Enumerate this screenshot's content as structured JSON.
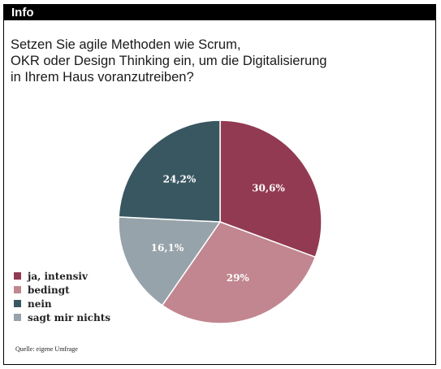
{
  "header": {
    "title": "Info"
  },
  "question": {
    "lines": [
      "Setzen Sie agile Methoden wie Scrum,",
      "OKR oder Design Thinking ein, um die Digitalisierung",
      "in Ihrem Haus voranzutreiben?"
    ]
  },
  "colors": {
    "ja_intensiv": "#923a52",
    "bedingt": "#c1868f",
    "nein": "#395761",
    "sagt_mir_nichts": "#97a3aa"
  },
  "chart_data": {
    "type": "pie",
    "categories": [
      "ja, intensiv",
      "bedingt",
      "nein",
      "sagt mir nichts"
    ],
    "values": [
      30.6,
      29,
      24.2,
      16.1
    ],
    "labels": [
      "30,6%",
      "29%",
      "24,2%",
      "16,1%"
    ],
    "slice_order_clockwise_from_top": [
      "ja, intensiv",
      "bedingt",
      "sagt mir nichts",
      "nein"
    ],
    "legend_position": "bottom-left"
  },
  "legend": {
    "items": [
      "ja, intensiv",
      "bedingt",
      "nein",
      "sagt mir nichts"
    ]
  },
  "source": "Quelle: eigene Umfrage"
}
